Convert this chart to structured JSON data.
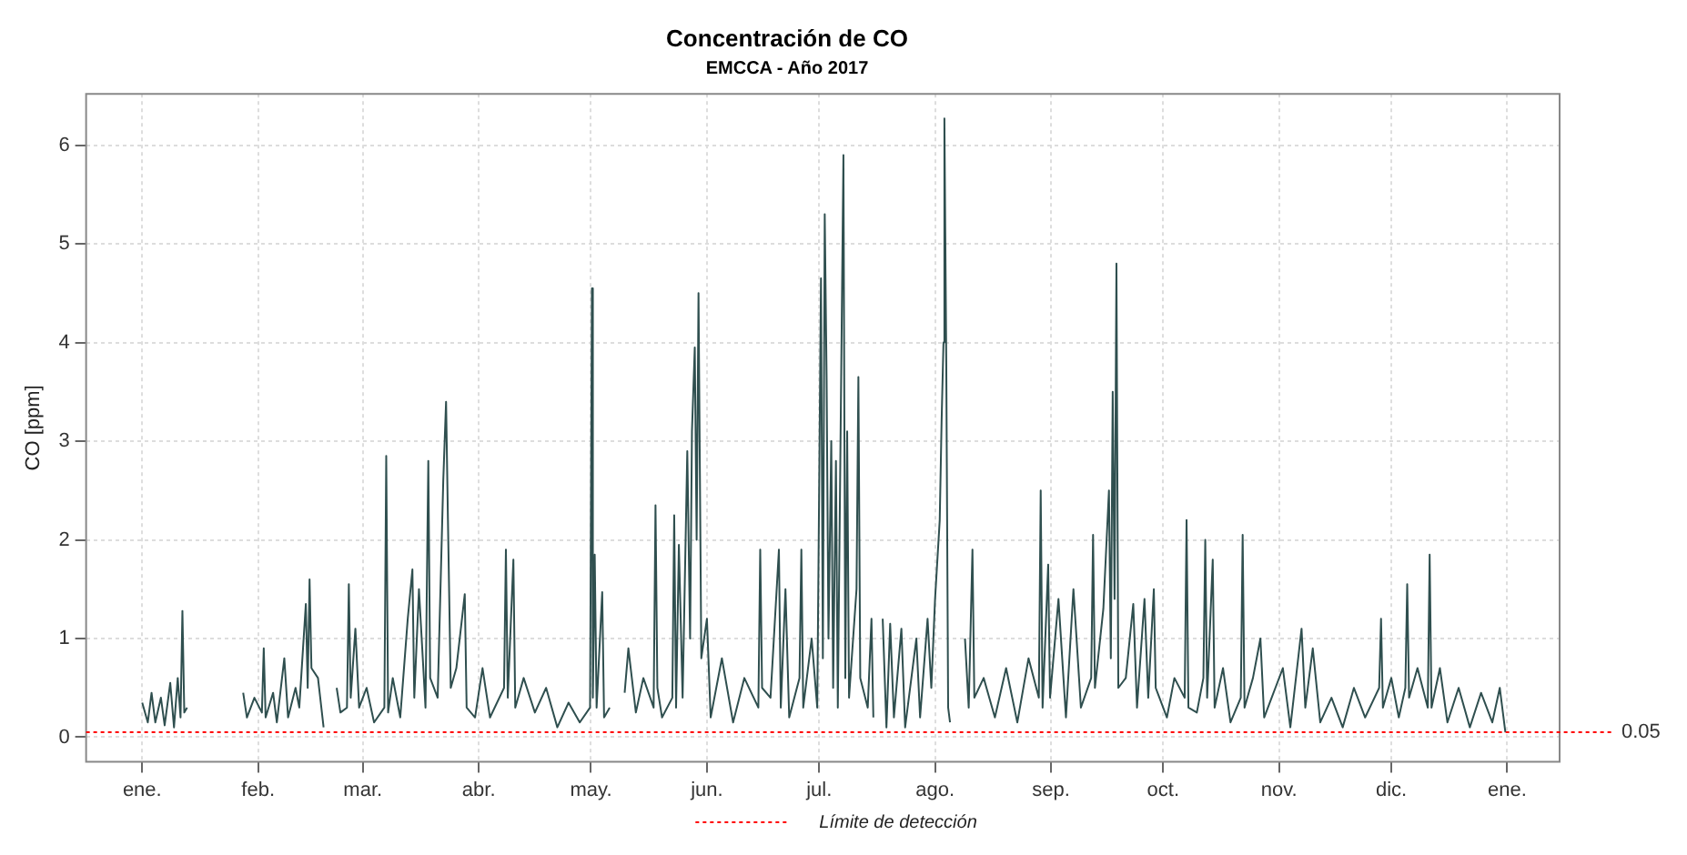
{
  "chart_data": {
    "type": "line",
    "title": "Concentración de CO",
    "subtitle": "EMCCA - Año 2017",
    "ylabel": "CO [ppm]",
    "xlim": [
      "2016-12-17",
      "2018-01-15"
    ],
    "ylim": [
      -0.25,
      6.52
    ],
    "xticks": [
      {
        "value": "2017-01-01",
        "label": "ene."
      },
      {
        "value": "2017-02-01",
        "label": "feb."
      },
      {
        "value": "2017-03-01",
        "label": "mar."
      },
      {
        "value": "2017-04-01",
        "label": "abr."
      },
      {
        "value": "2017-05-01",
        "label": "may."
      },
      {
        "value": "2017-06-01",
        "label": "jun."
      },
      {
        "value": "2017-07-01",
        "label": "jul."
      },
      {
        "value": "2017-08-01",
        "label": "ago."
      },
      {
        "value": "2017-09-01",
        "label": "sep."
      },
      {
        "value": "2017-10-01",
        "label": "oct."
      },
      {
        "value": "2017-11-01",
        "label": "nov."
      },
      {
        "value": "2017-12-01",
        "label": "dic."
      },
      {
        "value": "2018-01-01",
        "label": "ene."
      }
    ],
    "yticks": [
      0,
      1,
      2,
      3,
      4,
      5,
      6
    ],
    "annotations": [
      "0.05"
    ],
    "grid": true,
    "legend": "bottom",
    "line_style": "solid",
    "marker": "none",
    "ref_lines": [
      {
        "axis": "y",
        "value": 0.05,
        "label": "Límite de detección",
        "color": "#ff0000",
        "line_style": "dotted"
      }
    ],
    "series": [
      {
        "color": "#2f4f4f",
        "x": [
          "2017-01-01T00:00",
          "2017-01-02T12:00",
          "2017-01-03T12:00",
          "2017-01-04T12:00",
          "2017-01-06T00:00",
          "2017-01-07T00:00",
          "2017-01-08T12:00",
          "2017-01-09T12:00",
          "2017-01-10T12:00",
          "2017-01-11T06:00",
          "2017-01-11T18:00",
          "2017-01-12T06:00",
          "2017-01-13T00:00",
          "2017-01-20T00:00",
          "2017-01-28T00:00",
          "2017-01-29T00:00",
          "2017-01-31T00:00",
          "2017-02-02T00:00",
          "2017-02-02T12:00",
          "2017-02-03T00:00",
          "2017-02-05T00:00",
          "2017-02-06T00:00",
          "2017-02-08T00:00",
          "2017-02-09T00:00",
          "2017-02-11T00:00",
          "2017-02-12T00:00",
          "2017-02-13T18:00",
          "2017-02-14T06:00",
          "2017-02-14T18:00",
          "2017-02-15T06:00",
          "2017-02-17T00:00",
          "2017-02-18T12:00",
          "2017-02-20T00:00",
          "2017-02-22T00:00",
          "2017-02-23T00:00",
          "2017-02-24T18:00",
          "2017-02-25T06:00",
          "2017-02-25T18:00",
          "2017-02-27T00:00",
          "2017-02-28T00:00",
          "2017-03-02T00:00",
          "2017-03-04T00:00",
          "2017-03-06T18:00",
          "2017-03-07T06:00",
          "2017-03-07T18:00",
          "2017-03-09T00:00",
          "2017-03-11T00:00",
          "2017-03-13T00:00",
          "2017-03-14T06:00",
          "2017-03-14T18:00",
          "2017-03-16T00:00",
          "2017-03-17T18:00",
          "2017-03-18T06:00",
          "2017-03-18T12:00",
          "2017-03-19T00:00",
          "2017-03-21T00:00",
          "2017-03-22T12:00",
          "2017-03-23T06:00",
          "2017-03-23T18:00",
          "2017-03-24T12:00",
          "2017-03-26T00:00",
          "2017-03-28T06:00",
          "2017-03-28T18:00",
          "2017-03-31T00:00",
          "2017-04-02T00:00",
          "2017-04-04T00:00",
          "2017-04-07T18:00",
          "2017-04-08T06:00",
          "2017-04-08T18:00",
          "2017-04-10T06:00",
          "2017-04-10T18:00",
          "2017-04-13T00:00",
          "2017-04-16T00:00",
          "2017-04-19T00:00",
          "2017-04-22T00:00",
          "2017-04-25T00:00",
          "2017-04-28T00:00",
          "2017-04-30T18:00",
          "2017-05-01T06:00",
          "2017-05-01T12:00",
          "2017-05-02T00:00",
          "2017-05-02T12:00",
          "2017-05-04T00:00",
          "2017-05-04T12:00",
          "2017-05-06T00:00",
          "2017-05-08T00:00",
          "2017-05-10T00:00",
          "2017-05-11T00:00",
          "2017-05-13T00:00",
          "2017-05-15T00:00",
          "2017-05-17T18:00",
          "2017-05-18T06:00",
          "2017-05-18T18:00",
          "2017-05-20T00:00",
          "2017-05-22T18:00",
          "2017-05-23T06:00",
          "2017-05-23T18:00",
          "2017-05-24T12:00",
          "2017-05-25T12:00",
          "2017-05-26T18:00",
          "2017-05-27T12:00",
          "2017-05-28T00:00",
          "2017-05-28T18:00",
          "2017-05-29T06:00",
          "2017-05-29T18:00",
          "2017-05-30T12:00",
          "2017-06-01T00:00",
          "2017-06-02T00:00",
          "2017-06-05T00:00",
          "2017-06-08T00:00",
          "2017-06-11T00:00",
          "2017-06-14T18:00",
          "2017-06-15T06:00",
          "2017-06-15T18:00",
          "2017-06-18T00:00",
          "2017-06-20T06:00",
          "2017-06-20T18:00",
          "2017-06-22T00:00",
          "2017-06-23T00:00",
          "2017-06-25T18:00",
          "2017-06-26T06:00",
          "2017-06-26T18:00",
          "2017-06-29T00:00",
          "2017-06-30T12:00",
          "2017-07-01T12:00",
          "2017-07-02T00:00",
          "2017-07-02T12:00",
          "2017-07-03T00:00",
          "2017-07-03T12:00",
          "2017-07-04T06:00",
          "2017-07-04T18:00",
          "2017-07-05T12:00",
          "2017-07-06T00:00",
          "2017-07-07T12:00",
          "2017-07-08T00:00",
          "2017-07-08T12:00",
          "2017-07-09T00:00",
          "2017-07-11T00:00",
          "2017-07-11T12:00",
          "2017-07-12T00:00",
          "2017-07-14T00:00",
          "2017-07-15T00:00",
          "2017-07-15T12:00",
          "2017-07-16T12:00",
          "2017-07-18T00:00",
          "2017-07-19T00:00",
          "2017-07-20T00:00",
          "2017-07-21T00:00",
          "2017-07-23T00:00",
          "2017-07-24T00:00",
          "2017-07-27T00:00",
          "2017-07-28T00:00",
          "2017-07-30T00:00",
          "2017-07-31T00:00",
          "2017-08-01T00:00",
          "2017-08-02T06:00",
          "2017-08-02T18:00",
          "2017-08-03T06:00",
          "2017-08-03T12:00",
          "2017-08-04T00:00",
          "2017-08-04T12:00",
          "2017-08-05T00:00",
          "2017-08-07T00:00",
          "2017-08-09T00:00",
          "2017-08-10T00:00",
          "2017-08-11T00:00",
          "2017-08-11T12:00",
          "2017-08-14T00:00",
          "2017-08-17T00:00",
          "2017-08-20T00:00",
          "2017-08-23T00:00",
          "2017-08-26T00:00",
          "2017-08-28T18:00",
          "2017-08-29T06:00",
          "2017-08-29T18:00",
          "2017-08-31T06:00",
          "2017-08-31T18:00",
          "2017-09-03T00:00",
          "2017-09-05T00:00",
          "2017-09-07T00:00",
          "2017-09-09T00:00",
          "2017-09-11T18:00",
          "2017-09-12T06:00",
          "2017-09-12T18:00",
          "2017-09-15T00:00",
          "2017-09-16T12:00",
          "2017-09-17T00:00",
          "2017-09-17T12:00",
          "2017-09-18T00:00",
          "2017-09-18T12:00",
          "2017-09-19T00:00",
          "2017-09-21T00:00",
          "2017-09-23T00:00",
          "2017-09-24T00:00",
          "2017-09-26T00:00",
          "2017-09-27T00:00",
          "2017-09-28T12:00",
          "2017-09-29T00:00",
          "2017-10-02T00:00",
          "2017-10-04T00:00",
          "2017-10-06T18:00",
          "2017-10-07T06:00",
          "2017-10-07T18:00",
          "2017-10-10T00:00",
          "2017-10-11T18:00",
          "2017-10-12T06:00",
          "2017-10-12T18:00",
          "2017-10-14T06:00",
          "2017-10-14T18:00",
          "2017-10-17T00:00",
          "2017-10-19T00:00",
          "2017-10-21T18:00",
          "2017-10-22T06:00",
          "2017-10-22T18:00",
          "2017-10-25T00:00",
          "2017-10-27T00:00",
          "2017-10-28T00:00",
          "2017-10-31T00:00",
          "2017-11-02T00:00",
          "2017-11-04T00:00",
          "2017-11-07T00:00",
          "2017-11-08T00:00",
          "2017-11-10T00:00",
          "2017-11-12T00:00",
          "2017-11-15T00:00",
          "2017-11-18T00:00",
          "2017-11-21T00:00",
          "2017-11-24T00:00",
          "2017-11-27T18:00",
          "2017-11-28T06:00",
          "2017-11-28T18:00",
          "2017-12-01T00:00",
          "2017-12-03T00:00",
          "2017-12-04T18:00",
          "2017-12-05T06:00",
          "2017-12-05T18:00",
          "2017-12-08T00:00",
          "2017-12-10T18:00",
          "2017-12-11T06:00",
          "2017-12-11T18:00",
          "2017-12-14T00:00",
          "2017-12-16T00:00",
          "2017-12-19T00:00",
          "2017-12-22T00:00",
          "2017-12-25T00:00",
          "2017-12-28T00:00",
          "2017-12-30T00:00",
          "2017-12-31T12:00"
        ],
        "values": [
          0.35,
          0.15,
          0.45,
          0.15,
          0.4,
          0.12,
          0.55,
          0.1,
          0.6,
          0.2,
          1.28,
          0.25,
          0.3,
          null,
          0.45,
          0.2,
          0.4,
          0.25,
          0.9,
          0.2,
          0.45,
          0.15,
          0.8,
          0.2,
          0.5,
          0.3,
          1.35,
          0.5,
          1.6,
          0.7,
          0.6,
          0.1,
          null,
          0.5,
          0.25,
          0.3,
          1.55,
          0.4,
          1.1,
          0.3,
          0.5,
          0.15,
          0.3,
          2.85,
          0.25,
          0.6,
          0.2,
          1.2,
          1.7,
          0.4,
          1.5,
          0.3,
          2.0,
          2.8,
          0.6,
          0.4,
          2.6,
          3.4,
          2.2,
          0.5,
          0.7,
          1.45,
          0.3,
          0.2,
          0.7,
          0.2,
          0.5,
          1.9,
          0.4,
          1.8,
          0.3,
          0.6,
          0.25,
          0.5,
          0.1,
          0.35,
          0.15,
          0.3,
          4.55,
          0.4,
          1.85,
          0.3,
          1.47,
          0.2,
          0.3,
          null,
          0.45,
          0.9,
          0.25,
          0.6,
          0.3,
          2.35,
          0.5,
          0.2,
          0.4,
          2.25,
          0.3,
          1.95,
          0.4,
          2.9,
          1.0,
          3.1,
          3.95,
          2.0,
          4.5,
          0.8,
          1.2,
          0.2,
          0.8,
          0.15,
          0.6,
          0.3,
          1.9,
          0.5,
          0.4,
          1.9,
          0.3,
          1.5,
          0.2,
          0.6,
          1.9,
          0.3,
          1.0,
          0.3,
          4.65,
          0.8,
          5.3,
          3.65,
          1.0,
          3.0,
          0.5,
          2.8,
          0.3,
          5.9,
          0.6,
          3.1,
          0.4,
          1.5,
          3.65,
          0.6,
          0.3,
          1.2,
          0.2,
          null,
          1.2,
          0.1,
          1.15,
          0.2,
          1.1,
          0.1,
          1.0,
          0.2,
          1.2,
          0.5,
          1.4,
          2.2,
          3.2,
          4.0,
          6.27,
          3.8,
          0.3,
          0.15,
          null,
          1.0,
          0.3,
          1.9,
          0.4,
          0.6,
          0.2,
          0.7,
          0.15,
          0.8,
          0.4,
          2.5,
          0.3,
          1.75,
          0.4,
          1.4,
          0.2,
          1.5,
          0.3,
          0.6,
          2.05,
          0.5,
          1.3,
          2.5,
          0.8,
          3.5,
          1.4,
          4.8,
          0.5,
          0.6,
          1.35,
          0.3,
          1.4,
          0.4,
          1.5,
          0.5,
          0.2,
          0.6,
          0.4,
          2.2,
          0.3,
          0.25,
          0.6,
          2.0,
          0.4,
          1.8,
          0.3,
          0.7,
          0.15,
          0.4,
          2.05,
          0.3,
          0.6,
          1.0,
          0.2,
          0.5,
          0.7,
          0.1,
          1.1,
          0.3,
          0.9,
          0.15,
          0.4,
          0.1,
          0.5,
          0.2,
          0.5,
          1.2,
          0.3,
          0.6,
          0.2,
          0.5,
          1.55,
          0.4,
          0.7,
          0.3,
          1.85,
          0.3,
          0.7,
          0.15,
          0.5,
          0.1,
          0.45,
          0.15,
          0.5,
          0.05
        ]
      }
    ]
  }
}
